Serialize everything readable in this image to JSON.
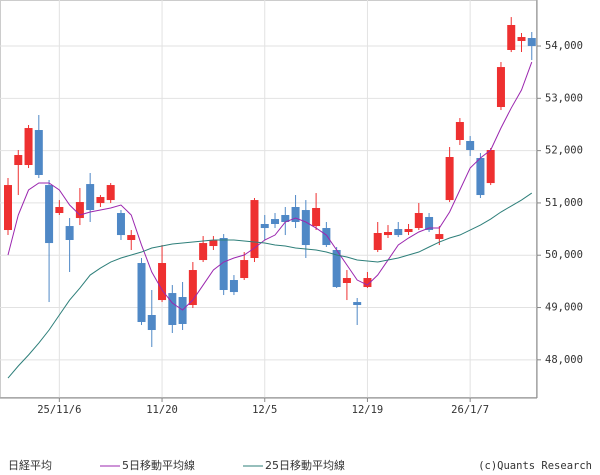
{
  "chart_data": {
    "type": "candlestick",
    "categories": [
      null,
      null,
      null,
      null,
      null,
      "25/11/6",
      null,
      null,
      null,
      null,
      null,
      null,
      null,
      null,
      null,
      "11/20",
      null,
      null,
      null,
      null,
      null,
      null,
      null,
      null,
      null,
      "12/5",
      null,
      null,
      null,
      null,
      null,
      null,
      null,
      null,
      null,
      "12/19",
      null,
      null,
      null,
      null,
      null,
      null,
      null,
      null,
      null,
      "26/1/7",
      null,
      null,
      null,
      null,
      null,
      null
    ],
    "series": [
      {
        "name": "日経平均",
        "type": "candlestick",
        "up_color": "#ee3030",
        "down_color": "#4f88c6",
        "open": [
          50482,
          51725,
          51725,
          52394,
          51342,
          50807,
          50558,
          50711,
          51361,
          50998,
          51055,
          50807,
          50291,
          49851,
          48857,
          49143,
          49277,
          49201,
          49048,
          49908,
          50176,
          50329,
          49526,
          49564,
          49947,
          50597,
          50692,
          50769,
          50922,
          50864,
          50558,
          50520,
          50100,
          49469,
          49105,
          49392,
          50100,
          50386,
          50501,
          50444,
          50520,
          50731,
          50310,
          51055,
          52203,
          52184,
          51859,
          51380,
          52834,
          53924,
          54096,
          54153
        ],
        "high": [
          51476,
          52012,
          52490,
          52681,
          51438,
          51055,
          50711,
          51285,
          51572,
          51151,
          51380,
          50864,
          50482,
          49947,
          49335,
          50195,
          49430,
          49488,
          49870,
          50367,
          50367,
          50405,
          49621,
          50061,
          51094,
          50769,
          50807,
          50922,
          51151,
          51055,
          51189,
          50635,
          50157,
          49717,
          49182,
          49679,
          50635,
          50577,
          50635,
          50597,
          50998,
          50807,
          50558,
          52069,
          52623,
          52279,
          51954,
          52050,
          53694,
          54554,
          54249,
          54268
        ],
        "low": [
          50386,
          51151,
          51667,
          51476,
          49105,
          50769,
          49679,
          50577,
          50635,
          50922,
          50998,
          50291,
          50100,
          48666,
          48245,
          49105,
          48513,
          48570,
          48991,
          49870,
          50100,
          49239,
          49239,
          49526,
          49870,
          50291,
          50520,
          50386,
          50520,
          49947,
          50482,
          50157,
          49373,
          49143,
          48666,
          49373,
          50061,
          50329,
          50348,
          50386,
          50482,
          50444,
          50195,
          51017,
          52107,
          51897,
          51094,
          51342,
          52776,
          53885,
          53885,
          53732
        ],
        "close": [
          51342,
          51916,
          52432,
          51534,
          50233,
          50922,
          50291,
          51017,
          50864,
          51113,
          51342,
          50386,
          50386,
          48723,
          48570,
          49851,
          48666,
          48685,
          49717,
          50233,
          50291,
          49335,
          49296,
          49908,
          51055,
          50520,
          50597,
          50635,
          50635,
          50195,
          50903,
          50195,
          49392,
          49564,
          49048,
          49564,
          50425,
          50444,
          50386,
          50501,
          50807,
          50482,
          50405,
          51878,
          52547,
          52012,
          51151,
          52012,
          53598,
          54402,
          54172,
          54000
        ]
      },
      {
        "name": "5日移動平均線",
        "type": "line",
        "color": "#9b27af",
        "values": [
          50004,
          50769,
          51247,
          51381,
          51381,
          51247,
          50960,
          50769,
          50826,
          50864,
          50903,
          50960,
          50769,
          50195,
          49679,
          49335,
          49086,
          48952,
          49143,
          49430,
          49717,
          49870,
          49947,
          50004,
          50138,
          50291,
          50386,
          50635,
          50711,
          50635,
          50520,
          50386,
          50100,
          49813,
          49526,
          49430,
          49621,
          49908,
          50195,
          50329,
          50444,
          50520,
          50520,
          50826,
          51247,
          51667,
          51859,
          52012,
          52432,
          52814,
          53159,
          53694
        ]
      },
      {
        "name": "25日移動平均線",
        "type": "line",
        "color": "#2e7f7a",
        "values": [
          47652,
          47882,
          48092,
          48321,
          48570,
          48857,
          49143,
          49373,
          49621,
          49755,
          49870,
          49947,
          50004,
          50061,
          50138,
          50176,
          50214,
          50233,
          50252,
          50272,
          50291,
          50291,
          50291,
          50272,
          50252,
          50233,
          50195,
          50176,
          50138,
          50119,
          50100,
          50061,
          50004,
          49966,
          49908,
          49889,
          49870,
          49908,
          49947,
          50004,
          50061,
          50157,
          50252,
          50329,
          50386,
          50482,
          50577,
          50692,
          50826,
          50941,
          51055,
          51189
        ]
      }
    ],
    "ylim": [
      47270,
      54880
    ],
    "yticks": [
      {
        "value": 48000,
        "label": "48,000"
      },
      {
        "value": 49000,
        "label": "49,000"
      },
      {
        "value": 50000,
        "label": "50,000"
      },
      {
        "value": 51000,
        "label": "51,000"
      },
      {
        "value": 52000,
        "label": "52,000"
      },
      {
        "value": 53000,
        "label": "53,000"
      },
      {
        "value": 54000,
        "label": "54,000"
      }
    ],
    "grid": true,
    "credit": "(c)Quants Research"
  }
}
